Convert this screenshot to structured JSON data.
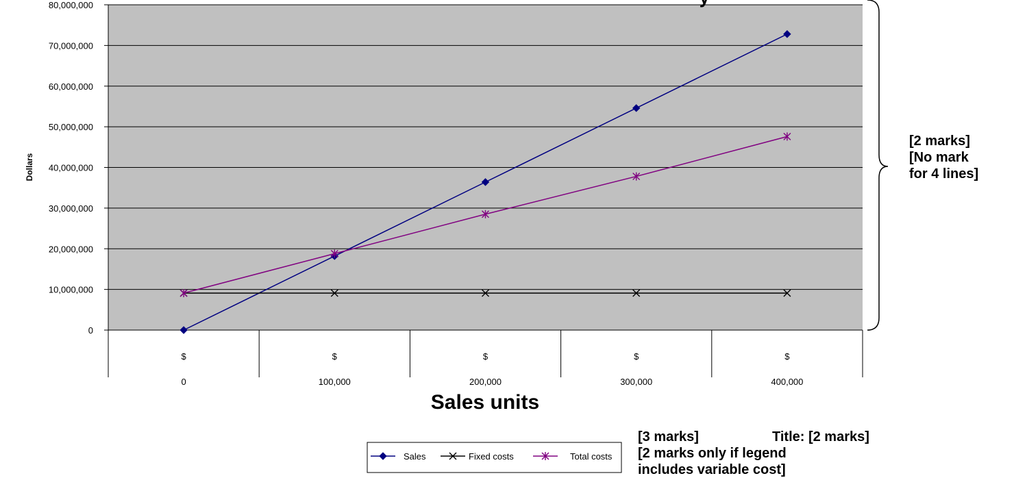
{
  "chart_data": {
    "type": "line",
    "title": "",
    "xlabel": "Sales units",
    "ylabel": "Dollars",
    "categories": [
      "0",
      "100,000",
      "200,000",
      "300,000",
      "400,000"
    ],
    "category_prefix": "$",
    "ylim": [
      0,
      80000000
    ],
    "y_ticks": [
      "0",
      "10,000,000",
      "20,000,000",
      "30,000,000",
      "40,000,000",
      "50,000,000",
      "60,000,000",
      "70,000,000",
      "80,000,000"
    ],
    "series": [
      {
        "name": "Sales",
        "values": [
          0,
          18200000,
          36400000,
          54600000,
          72800000
        ],
        "color": "#000080",
        "marker": "diamond"
      },
      {
        "name": "Fixed costs",
        "values": [
          9100000,
          9100000,
          9100000,
          9100000,
          9100000
        ],
        "color": "#000000",
        "marker": "x"
      },
      {
        "name": "Total costs",
        "values": [
          9100000,
          18800000,
          28500000,
          37800000,
          47600000
        ],
        "color": "#800080",
        "marker": "asterisk"
      }
    ],
    "plot_background": "#c0c0c0",
    "grid": true,
    "legend_position": "bottom"
  },
  "annotations": {
    "top_fragment": "y",
    "lines_note": [
      "[2 marks]",
      "[No mark",
      "for 4 lines]"
    ],
    "title_note": "Title: [2 marks]",
    "legend_note": [
      "[3 marks]",
      "[2 marks only if legend",
      "includes variable cost]"
    ]
  }
}
